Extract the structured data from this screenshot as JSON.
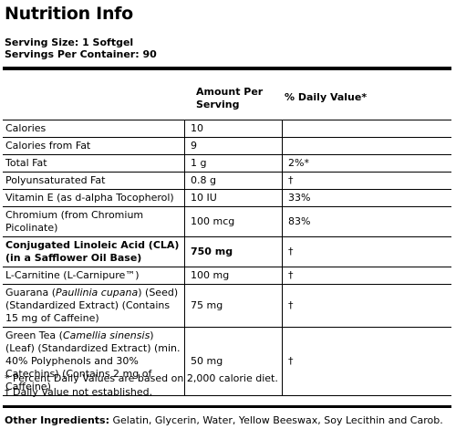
{
  "title": "Nutrition Info",
  "serving_size": "Serving Size: 1 Softgel",
  "servings_per_container": "Servings Per Container: 90",
  "headers": {
    "amount": "Amount Per Serving",
    "daily_value": "% Daily Value*"
  },
  "rows": [
    {
      "name": "Calories",
      "amount": "10",
      "dv": "",
      "bold": false
    },
    {
      "name": "Calories from Fat",
      "amount": "9",
      "dv": "",
      "bold": false
    },
    {
      "name": "Total Fat",
      "amount": "1 g",
      "dv": "2%*",
      "bold": false
    },
    {
      "name": "Polyunsaturated Fat",
      "amount": "0.8 g",
      "dv": "†",
      "bold": false
    },
    {
      "name": "Vitamin E (as d-alpha Tocopherol)",
      "amount": "10 IU",
      "dv": "33%",
      "bold": false
    },
    {
      "name": "Chromium (from Chromium Picolinate)",
      "amount": "100 mcg",
      "dv": "83%",
      "bold": false
    },
    {
      "name": "Conjugated Linoleic Acid (CLA) (in a Safflower Oil Base)",
      "amount": "750 mg",
      "dv": "†",
      "bold": true
    },
    {
      "name": "L-Carnitine (L-Carnipure™)",
      "amount": "100 mg",
      "dv": "†",
      "bold": false
    },
    {
      "name_parts": [
        "Guarana (",
        "Paullinia cupana",
        ") (Seed) (Standardized Extract) (Contains 15 mg of Caffeine)"
      ],
      "amount": "75 mg",
      "dv": "†",
      "bold": false
    },
    {
      "name_parts": [
        "Green Tea (",
        "Camellia sinensis",
        ") (Leaf) (Standardized Extract) (min. 40% Polyphenols and 30% Catechins) (Contains 2 mg of Caffeine)"
      ],
      "amount": "50 mg",
      "dv": "†",
      "bold": false
    }
  ],
  "footnotes": {
    "percent": "* Percent Daily Values are based on 2,000 calorie diet.",
    "dagger": "† Daily Value not established."
  },
  "other_ingredients": {
    "label": "Other Ingredients:",
    "text": " Gelatin, Glycerin, Water, Yellow Beeswax, Soy Lecithin and Carob."
  }
}
